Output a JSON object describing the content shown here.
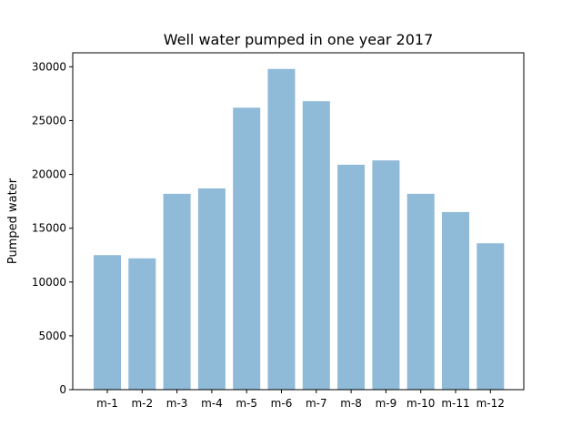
{
  "chart_data": {
    "type": "bar",
    "title": "Well water pumped in one year 2017",
    "xlabel": "",
    "ylabel": "Pumped water",
    "categories": [
      "m-1",
      "m-2",
      "m-3",
      "m-4",
      "m-5",
      "m-6",
      "m-7",
      "m-8",
      "m-9",
      "m-10",
      "m-11",
      "m-12"
    ],
    "values": [
      12500,
      12200,
      18200,
      18700,
      26200,
      29800,
      26800,
      20900,
      21300,
      18200,
      16500,
      13600
    ],
    "ylim": [
      0,
      31300
    ],
    "yticks": [
      0,
      5000,
      10000,
      15000,
      20000,
      25000,
      30000
    ],
    "bar_color": "#8fbad8",
    "grid": false,
    "legend": "none"
  }
}
